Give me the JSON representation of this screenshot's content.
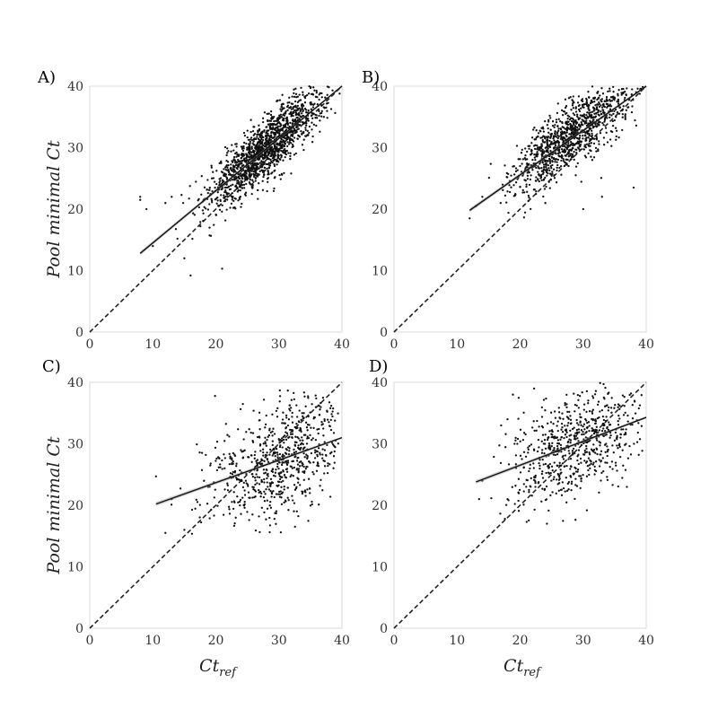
{
  "chart_data": [
    {
      "type": "scatter",
      "panel_label": "A)",
      "xlim": [
        0,
        40
      ],
      "ylim": [
        0,
        40
      ],
      "xticks": [
        "0",
        "10",
        "20",
        "30",
        "40"
      ],
      "yticks": [
        "0",
        "10",
        "20",
        "30",
        "40"
      ],
      "ylabel": "Pool minimal Ct",
      "xlabel": "",
      "identity_line": {
        "from": [
          0,
          0
        ],
        "to": [
          40,
          40
        ]
      },
      "regression_line": {
        "x": [
          8,
          40
        ],
        "y": [
          12.8,
          40.0
        ]
      },
      "grid": false,
      "point_cloud": {
        "count": 1500,
        "x_center": 28,
        "x_spread": 4.5,
        "x_range": [
          8,
          40
        ],
        "slope": 0.85,
        "intercept": 6.2,
        "noise": 2.4,
        "y_range": [
          9,
          40
        ]
      },
      "outliers": [
        [
          8,
          21.5
        ],
        [
          8,
          22
        ],
        [
          9,
          20
        ],
        [
          10,
          14
        ],
        [
          12,
          21
        ],
        [
          13,
          22
        ],
        [
          16,
          9.2
        ],
        [
          21,
          10.3
        ],
        [
          15,
          12
        ],
        [
          19,
          17
        ]
      ]
    },
    {
      "type": "scatter",
      "panel_label": "B)",
      "xlim": [
        0,
        40
      ],
      "ylim": [
        0,
        40
      ],
      "xticks": [
        "0",
        "10",
        "20",
        "30",
        "40"
      ],
      "yticks": [
        "0",
        "10",
        "20",
        "30",
        "40"
      ],
      "ylabel": "",
      "xlabel": "",
      "identity_line": {
        "from": [
          0,
          0
        ],
        "to": [
          40,
          40
        ]
      },
      "regression_line": {
        "x": [
          12,
          40
        ],
        "y": [
          19.8,
          40.0
        ]
      },
      "grid": false,
      "point_cloud": {
        "count": 1100,
        "x_center": 28,
        "x_spread": 4.5,
        "x_range": [
          12,
          40
        ],
        "slope": 0.75,
        "intercept": 10.8,
        "noise": 2.6,
        "y_range": [
          17,
          40
        ]
      },
      "outliers": [
        [
          12,
          18.5
        ],
        [
          13,
          20.5
        ],
        [
          14,
          22
        ],
        [
          20,
          27
        ],
        [
          24,
          21
        ],
        [
          30,
          20
        ],
        [
          33,
          22
        ],
        [
          38,
          23.5
        ]
      ]
    },
    {
      "type": "scatter",
      "panel_label": "C)",
      "xlim": [
        0,
        40
      ],
      "ylim": [
        0,
        40
      ],
      "xticks": [
        "0",
        "10",
        "20",
        "30",
        "40"
      ],
      "yticks": [
        "0",
        "10",
        "20",
        "30",
        "40"
      ],
      "ylabel": "Pool minimal Ct",
      "xlabel": "Ct_ref",
      "identity_line": {
        "from": [
          0,
          0
        ],
        "to": [
          40,
          40
        ]
      },
      "regression_line": {
        "x": [
          10.5,
          40
        ],
        "y": [
          20.2,
          31.0
        ]
      },
      "grid": false,
      "point_cloud": {
        "count": 700,
        "x_center": 30,
        "x_spread": 6,
        "x_range": [
          11,
          39.5
        ],
        "slope": 0.37,
        "intercept": 16.3,
        "noise": 5,
        "y_range": [
          15,
          39
        ]
      },
      "outliers": [
        [
          10.5,
          24.7
        ],
        [
          12,
          15.5
        ],
        [
          13,
          21
        ],
        [
          15,
          16
        ]
      ]
    },
    {
      "type": "scatter",
      "panel_label": "D)",
      "xlim": [
        0,
        40
      ],
      "ylim": [
        0,
        40
      ],
      "xticks": [
        "0",
        "10",
        "20",
        "30",
        "40"
      ],
      "yticks": [
        "0",
        "10",
        "20",
        "30",
        "40"
      ],
      "ylabel": "",
      "xlabel": "Ct_ref",
      "identity_line": {
        "from": [
          0,
          0
        ],
        "to": [
          40,
          40
        ]
      },
      "regression_line": {
        "x": [
          13,
          40
        ],
        "y": [
          23.8,
          34.3
        ]
      },
      "grid": false,
      "point_cloud": {
        "count": 650,
        "x_center": 29,
        "x_spread": 5.5,
        "x_range": [
          13.5,
          39.5
        ],
        "slope": 0.39,
        "intercept": 18.7,
        "noise": 4.5,
        "y_range": [
          17,
          40
        ]
      },
      "outliers": [
        [
          13.5,
          21
        ],
        [
          14,
          24
        ],
        [
          17,
          33
        ],
        [
          18,
          34
        ],
        [
          18,
          21
        ]
      ]
    }
  ]
}
